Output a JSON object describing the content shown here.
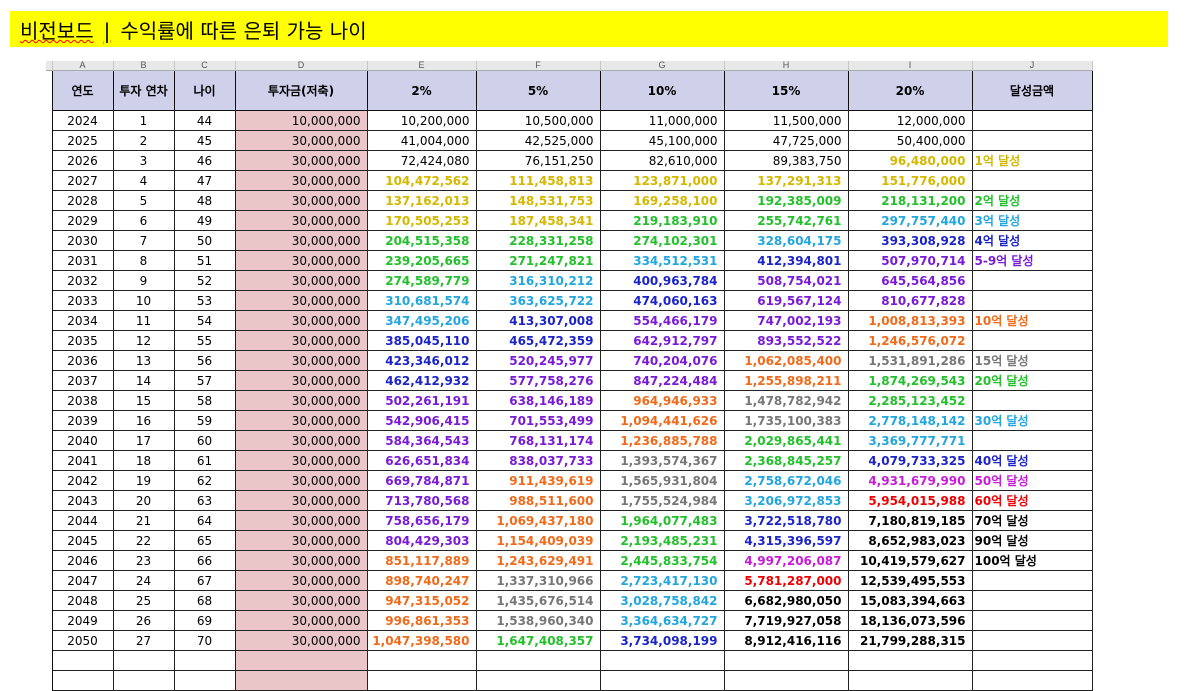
{
  "title": {
    "brand": "비전보드",
    "separator": "|",
    "subtitle": "수익률에 따른 은퇴 가능 나이"
  },
  "column_letters": [
    "A",
    "B",
    "C",
    "D",
    "E",
    "F",
    "G",
    "H",
    "I",
    "J"
  ],
  "headers": [
    "연도",
    "투자 연차",
    "나이",
    "투자금(저축)",
    "2%",
    "5%",
    "10%",
    "15%",
    "20%",
    "달성금액"
  ],
  "palette": {
    "black": "#000000",
    "yellow": "#d4b800",
    "green": "#22c02a",
    "cyan": "#22a6de",
    "blue": "#1c24c8",
    "purple": "#7a1ad6",
    "orange": "#f06a1a",
    "gray": "#777777",
    "magenta": "#c81ad8",
    "red": "#ee0000",
    "header_bg": "#cfd0ea",
    "invest_bg": "#eac6c8",
    "title_bg": "#ffff00"
  },
  "rows": [
    {
      "year": "2024",
      "n": "1",
      "age": "44",
      "invest": "10,000,000",
      "r2": "10,200,000",
      "r5": "10,500,000",
      "r10": "11,000,000",
      "r15": "11,500,000",
      "r20": "12,000,000",
      "ach": "",
      "c": [
        "black",
        "black",
        "black",
        "black",
        "black",
        ""
      ]
    },
    {
      "year": "2025",
      "n": "2",
      "age": "45",
      "invest": "30,000,000",
      "r2": "41,004,000",
      "r5": "42,525,000",
      "r10": "45,100,000",
      "r15": "47,725,000",
      "r20": "50,400,000",
      "ach": "",
      "c": [
        "black",
        "black",
        "black",
        "black",
        "black",
        ""
      ]
    },
    {
      "year": "2026",
      "n": "3",
      "age": "46",
      "invest": "30,000,000",
      "r2": "72,424,080",
      "r5": "76,151,250",
      "r10": "82,610,000",
      "r15": "89,383,750",
      "r20": "96,480,000",
      "ach": "1억 달성",
      "c": [
        "black",
        "black",
        "black",
        "black",
        "yellow",
        "yellow"
      ]
    },
    {
      "year": "2027",
      "n": "4",
      "age": "47",
      "invest": "30,000,000",
      "r2": "104,472,562",
      "r5": "111,458,813",
      "r10": "123,871,000",
      "r15": "137,291,313",
      "r20": "151,776,000",
      "ach": "",
      "c": [
        "yellow",
        "yellow",
        "yellow",
        "yellow",
        "yellow",
        ""
      ]
    },
    {
      "year": "2028",
      "n": "5",
      "age": "48",
      "invest": "30,000,000",
      "r2": "137,162,013",
      "r5": "148,531,753",
      "r10": "169,258,100",
      "r15": "192,385,009",
      "r20": "218,131,200",
      "ach": "2억 달성",
      "c": [
        "yellow",
        "yellow",
        "yellow",
        "green",
        "green",
        "green"
      ]
    },
    {
      "year": "2029",
      "n": "6",
      "age": "49",
      "invest": "30,000,000",
      "r2": "170,505,253",
      "r5": "187,458,341",
      "r10": "219,183,910",
      "r15": "255,742,761",
      "r20": "297,757,440",
      "ach": "3억 달성",
      "c": [
        "yellow",
        "yellow",
        "green",
        "green",
        "cyan",
        "cyan"
      ]
    },
    {
      "year": "2030",
      "n": "7",
      "age": "50",
      "invest": "30,000,000",
      "r2": "204,515,358",
      "r5": "228,331,258",
      "r10": "274,102,301",
      "r15": "328,604,175",
      "r20": "393,308,928",
      "ach": "4억 달성",
      "c": [
        "green",
        "green",
        "green",
        "cyan",
        "blue",
        "blue"
      ]
    },
    {
      "year": "2031",
      "n": "8",
      "age": "51",
      "invest": "30,000,000",
      "r2": "239,205,665",
      "r5": "271,247,821",
      "r10": "334,512,531",
      "r15": "412,394,801",
      "r20": "507,970,714",
      "ach": "5-9억 달성",
      "c": [
        "green",
        "green",
        "cyan",
        "blue",
        "purple",
        "purple"
      ]
    },
    {
      "year": "2032",
      "n": "9",
      "age": "52",
      "invest": "30,000,000",
      "r2": "274,589,779",
      "r5": "316,310,212",
      "r10": "400,963,784",
      "r15": "508,754,021",
      "r20": "645,564,856",
      "ach": "",
      "c": [
        "green",
        "cyan",
        "blue",
        "purple",
        "purple",
        ""
      ]
    },
    {
      "year": "2033",
      "n": "10",
      "age": "53",
      "invest": "30,000,000",
      "r2": "310,681,574",
      "r5": "363,625,722",
      "r10": "474,060,163",
      "r15": "619,567,124",
      "r20": "810,677,828",
      "ach": "",
      "c": [
        "cyan",
        "cyan",
        "blue",
        "purple",
        "purple",
        ""
      ]
    },
    {
      "year": "2034",
      "n": "11",
      "age": "54",
      "invest": "30,000,000",
      "r2": "347,495,206",
      "r5": "413,307,008",
      "r10": "554,466,179",
      "r15": "747,002,193",
      "r20": "1,008,813,393",
      "ach": "10억 달성",
      "c": [
        "cyan",
        "blue",
        "purple",
        "purple",
        "orange",
        "orange"
      ]
    },
    {
      "year": "2035",
      "n": "12",
      "age": "55",
      "invest": "30,000,000",
      "r2": "385,045,110",
      "r5": "465,472,359",
      "r10": "642,912,797",
      "r15": "893,552,522",
      "r20": "1,246,576,072",
      "ach": "",
      "c": [
        "blue",
        "blue",
        "purple",
        "purple",
        "orange",
        ""
      ]
    },
    {
      "year": "2036",
      "n": "13",
      "age": "56",
      "invest": "30,000,000",
      "r2": "423,346,012",
      "r5": "520,245,977",
      "r10": "740,204,076",
      "r15": "1,062,085,400",
      "r20": "1,531,891,286",
      "ach": "15억 달성",
      "c": [
        "blue",
        "purple",
        "purple",
        "orange",
        "gray",
        "gray"
      ]
    },
    {
      "year": "2037",
      "n": "14",
      "age": "57",
      "invest": "30,000,000",
      "r2": "462,412,932",
      "r5": "577,758,276",
      "r10": "847,224,484",
      "r15": "1,255,898,211",
      "r20": "1,874,269,543",
      "ach": "20억 달성",
      "c": [
        "blue",
        "purple",
        "purple",
        "orange",
        "green",
        "green"
      ]
    },
    {
      "year": "2038",
      "n": "15",
      "age": "58",
      "invest": "30,000,000",
      "r2": "502,261,191",
      "r5": "638,146,189",
      "r10": "964,946,933",
      "r15": "1,478,782,942",
      "r20": "2,285,123,452",
      "ach": "",
      "c": [
        "purple",
        "purple",
        "orange",
        "gray",
        "green",
        ""
      ]
    },
    {
      "year": "2039",
      "n": "16",
      "age": "59",
      "invest": "30,000,000",
      "r2": "542,906,415",
      "r5": "701,553,499",
      "r10": "1,094,441,626",
      "r15": "1,735,100,383",
      "r20": "2,778,148,142",
      "ach": "30억 달성",
      "c": [
        "purple",
        "purple",
        "orange",
        "gray",
        "cyan",
        "cyan"
      ]
    },
    {
      "year": "2040",
      "n": "17",
      "age": "60",
      "invest": "30,000,000",
      "r2": "584,364,543",
      "r5": "768,131,174",
      "r10": "1,236,885,788",
      "r15": "2,029,865,441",
      "r20": "3,369,777,771",
      "ach": "",
      "c": [
        "purple",
        "purple",
        "orange",
        "green",
        "cyan",
        ""
      ]
    },
    {
      "year": "2041",
      "n": "18",
      "age": "61",
      "invest": "30,000,000",
      "r2": "626,651,834",
      "r5": "838,037,733",
      "r10": "1,393,574,367",
      "r15": "2,368,845,257",
      "r20": "4,079,733,325",
      "ach": "40억 달성",
      "c": [
        "purple",
        "purple",
        "gray",
        "green",
        "blue",
        "blue"
      ]
    },
    {
      "year": "2042",
      "n": "19",
      "age": "62",
      "invest": "30,000,000",
      "r2": "669,784,871",
      "r5": "911,439,619",
      "r10": "1,565,931,804",
      "r15": "2,758,672,046",
      "r20": "4,931,679,990",
      "ach": "50억 달성",
      "c": [
        "purple",
        "orange",
        "gray",
        "cyan",
        "magenta",
        "magenta"
      ]
    },
    {
      "year": "2043",
      "n": "20",
      "age": "63",
      "invest": "30,000,000",
      "r2": "713,780,568",
      "r5": "988,511,600",
      "r10": "1,755,524,984",
      "r15": "3,206,972,853",
      "r20": "5,954,015,988",
      "ach": "60억 달성",
      "c": [
        "purple",
        "orange",
        "gray",
        "cyan",
        "red",
        "red"
      ]
    },
    {
      "year": "2044",
      "n": "21",
      "age": "64",
      "invest": "30,000,000",
      "r2": "758,656,179",
      "r5": "1,069,437,180",
      "r10": "1,964,077,483",
      "r15": "3,722,518,780",
      "r20": "7,180,819,185",
      "ach": "70억 달성",
      "c": [
        "purple",
        "orange",
        "green",
        "blue",
        "black",
        "black"
      ]
    },
    {
      "year": "2045",
      "n": "22",
      "age": "65",
      "invest": "30,000,000",
      "r2": "804,429,303",
      "r5": "1,154,409,039",
      "r10": "2,193,485,231",
      "r15": "4,315,396,597",
      "r20": "8,652,983,023",
      "ach": "90억 달성",
      "c": [
        "purple",
        "orange",
        "green",
        "blue",
        "black",
        "black"
      ]
    },
    {
      "year": "2046",
      "n": "23",
      "age": "66",
      "invest": "30,000,000",
      "r2": "851,117,889",
      "r5": "1,243,629,491",
      "r10": "2,445,833,754",
      "r15": "4,997,206,087",
      "r20": "10,419,579,627",
      "ach": "100억 달성",
      "c": [
        "orange",
        "orange",
        "green",
        "magenta",
        "black",
        "black"
      ]
    },
    {
      "year": "2047",
      "n": "24",
      "age": "67",
      "invest": "30,000,000",
      "r2": "898,740,247",
      "r5": "1,337,310,966",
      "r10": "2,723,417,130",
      "r15": "5,781,287,000",
      "r20": "12,539,495,553",
      "ach": "",
      "c": [
        "orange",
        "gray",
        "cyan",
        "red",
        "black",
        ""
      ]
    },
    {
      "year": "2048",
      "n": "25",
      "age": "68",
      "invest": "30,000,000",
      "r2": "947,315,052",
      "r5": "1,435,676,514",
      "r10": "3,028,758,842",
      "r15": "6,682,980,050",
      "r20": "15,083,394,663",
      "ach": "",
      "c": [
        "orange",
        "gray",
        "cyan",
        "black",
        "black",
        ""
      ]
    },
    {
      "year": "2049",
      "n": "26",
      "age": "69",
      "invest": "30,000,000",
      "r2": "996,861,353",
      "r5": "1,538,960,340",
      "r10": "3,364,634,727",
      "r15": "7,719,927,058",
      "r20": "18,136,073,596",
      "ach": "",
      "c": [
        "orange",
        "gray",
        "cyan",
        "black",
        "black",
        ""
      ]
    },
    {
      "year": "2050",
      "n": "27",
      "age": "70",
      "invest": "30,000,000",
      "r2": "1,047,398,580",
      "r5": "1,647,408,357",
      "r10": "3,734,098,199",
      "r15": "8,912,416,116",
      "r20": "21,799,288,315",
      "ach": "",
      "c": [
        "orange",
        "green",
        "blue",
        "black",
        "black",
        ""
      ]
    }
  ]
}
